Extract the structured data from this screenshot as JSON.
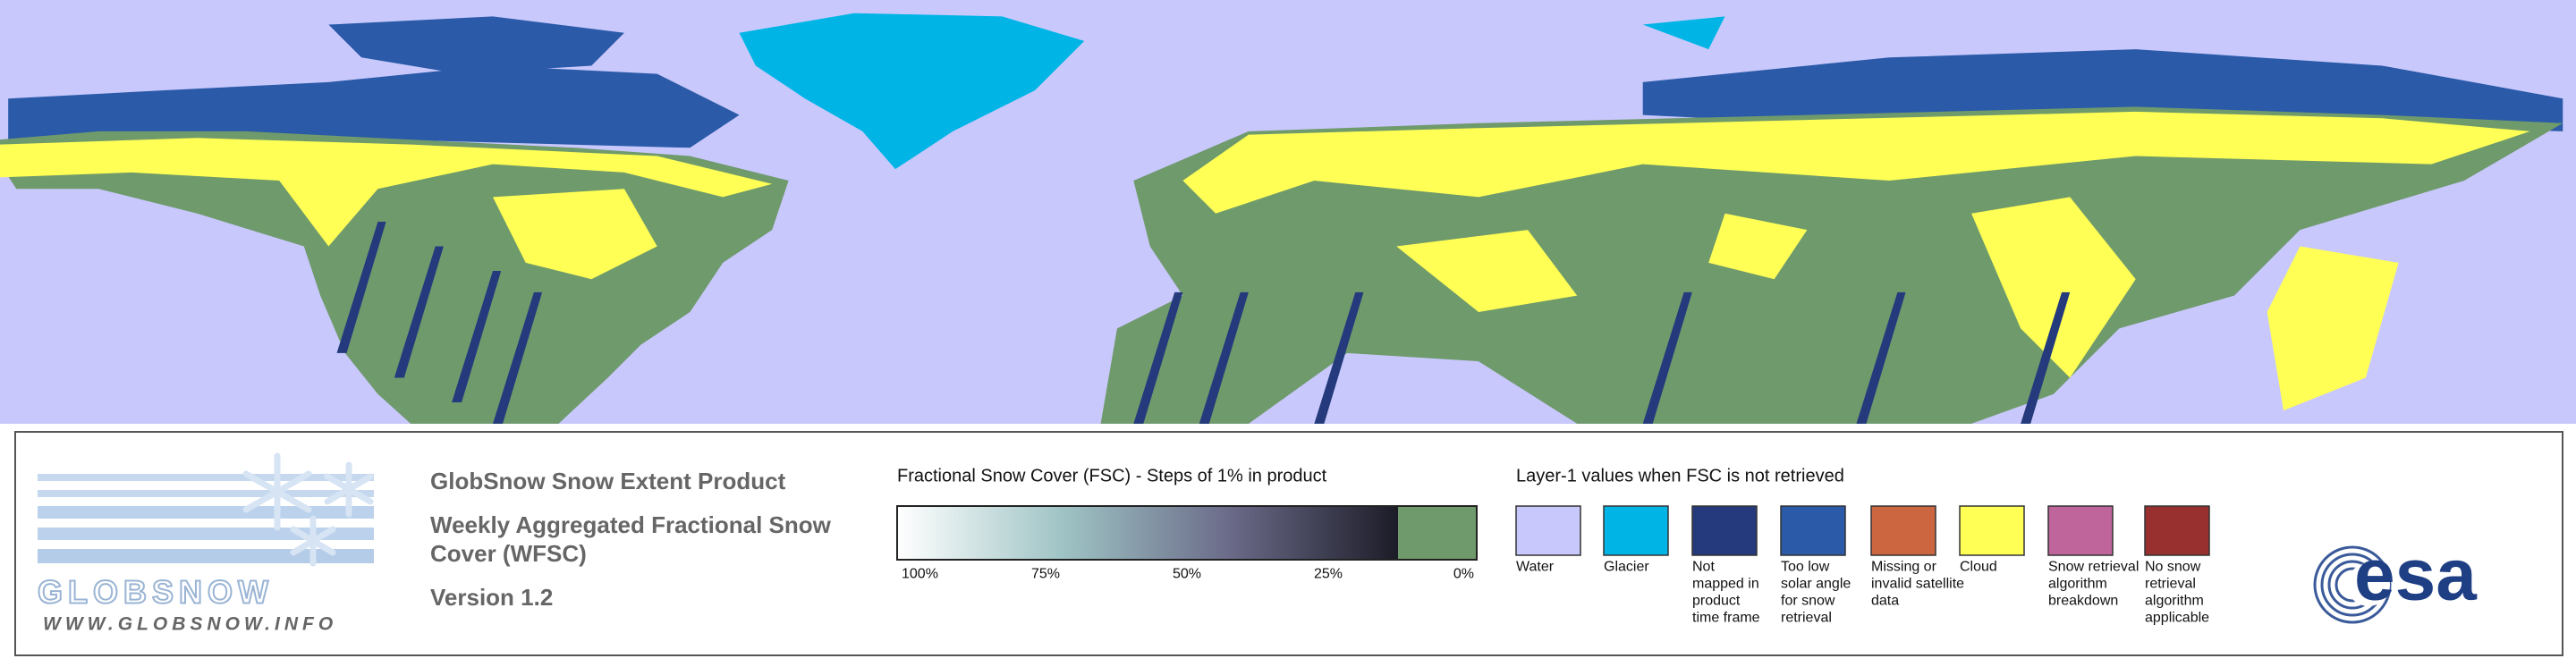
{
  "logo": {
    "name": "GLOBSNOW",
    "url": "WWW.GLOBSNOW.INFO"
  },
  "product": {
    "title": "GlobSnow Snow Extent Product",
    "subtitle_lines": [
      "Weekly Aggregated Fractional Snow",
      "Cover (WFSC)"
    ],
    "version": "Version 1.2"
  },
  "fsc_legend": {
    "title": "Fractional Snow Cover (FSC) - Steps of 1% in product",
    "ticks": [
      "100%",
      "75%",
      "50%",
      "25%",
      "0%"
    ],
    "gradient_colors": [
      "#ffffff",
      "#9ec3c4",
      "#6a6a88",
      "#1c1c28"
    ],
    "zero_color": "#6f9a6c"
  },
  "layer1_legend": {
    "title": "Layer-1 values when FSC is not retrieved",
    "classes": [
      {
        "label_lines": [
          "Water"
        ],
        "color": "#c8c8fc"
      },
      {
        "label_lines": [
          "Glacier"
        ],
        "color": "#00b4e6"
      },
      {
        "label_lines": [
          "Not",
          "mapped in",
          "product",
          "time frame"
        ],
        "color": "#243a7c"
      },
      {
        "label_lines": [
          "Too low",
          "solar angle",
          "for snow",
          "retrieval"
        ],
        "color": "#2a5aa8"
      },
      {
        "label_lines": [
          "Missing or",
          "invalid satellite",
          "data"
        ],
        "color": "#cc6640"
      },
      {
        "label_lines": [
          "Cloud"
        ],
        "color": "#ffff55"
      },
      {
        "label_lines": [
          "Snow retrieval",
          "algorithm",
          "breakdown"
        ],
        "color": "#c0649c"
      },
      {
        "label_lines": [
          "No snow",
          "retrieval",
          "algorithm",
          "applicable"
        ],
        "color": "#993030"
      }
    ]
  },
  "agency_logo": "esa"
}
